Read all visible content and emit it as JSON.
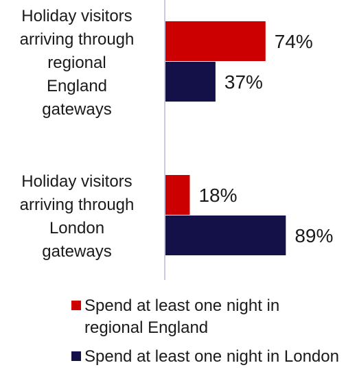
{
  "chart_data": {
    "type": "bar",
    "orientation": "horizontal",
    "categories": [
      "Holiday visitors arriving through regional England gateways",
      "Holiday visitors arriving through London gateways"
    ],
    "category_lines": [
      [
        "Holiday visitors",
        "arriving through",
        "regional",
        "England",
        "gateways"
      ],
      [
        "Holiday visitors",
        "arriving through",
        "London",
        "gateways"
      ]
    ],
    "series": [
      {
        "name": "Spend at least one night in regional England",
        "values": [
          74,
          18
        ],
        "labels": [
          "74%",
          "18%"
        ],
        "color": "#cc0000"
      },
      {
        "name": "Spend at least one night in London",
        "values": [
          37,
          89
        ],
        "labels": [
          "37%",
          "89%"
        ],
        "color": "#141048"
      }
    ],
    "xlim": [
      0,
      100
    ],
    "unit": "%",
    "axis_color": "#c8c8e6",
    "grid": false,
    "legend_position": "bottom"
  },
  "legend": {
    "items": [
      {
        "text": "Spend at least one night in regional England",
        "color": "#cc0000"
      },
      {
        "text": "Spend at least one night in London",
        "color": "#141048"
      }
    ]
  }
}
